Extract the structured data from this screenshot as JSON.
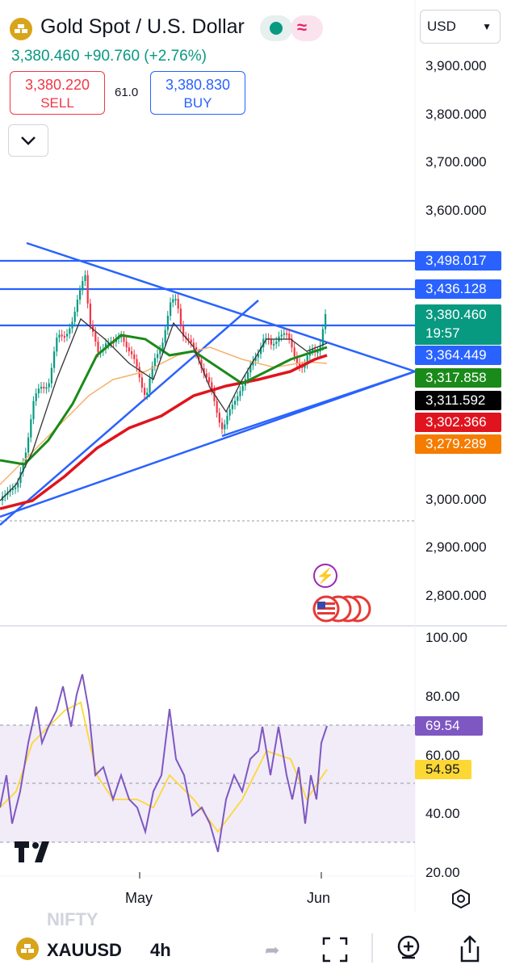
{
  "header": {
    "title": "Gold Spot / U.S. Dollar",
    "last": "3,380.460",
    "change": "+90.760 (+2.76%)",
    "currency": "USD"
  },
  "trade": {
    "sell_price": "3,380.220",
    "sell_label": "SELL",
    "spread": "61.0",
    "buy_price": "3,380.830",
    "buy_label": "BUY"
  },
  "price_axis": [
    "3,900.000",
    "3,800.000",
    "3,700.000",
    "3,600.000",
    "3,000.000",
    "2,900.000",
    "2,800.000"
  ],
  "price_tags": {
    "t1": "3,498.017",
    "t2": "3,436.128",
    "t3": "3,380.460",
    "t3_time": "19:57",
    "t4": "3,364.449",
    "t5": "3,317.858",
    "t6": "3,311.592",
    "t7": "3,302.366",
    "t8": "3,279.289"
  },
  "colors": {
    "up": "#089981",
    "down": "#f23645",
    "blue": "#2962ff",
    "rsi": "#7e57c2",
    "rsi_ma": "#fdd835"
  },
  "rsi": {
    "axis": [
      "100.00",
      "80.00",
      "60.00",
      "40.00",
      "20.00"
    ],
    "value": "69.54",
    "ma_value": "54.95"
  },
  "time_axis": [
    "May",
    "Jun"
  ],
  "watermark": "NIFTY",
  "bottom_bar": {
    "symbol": "XAUUSD",
    "interval": "4h"
  }
}
